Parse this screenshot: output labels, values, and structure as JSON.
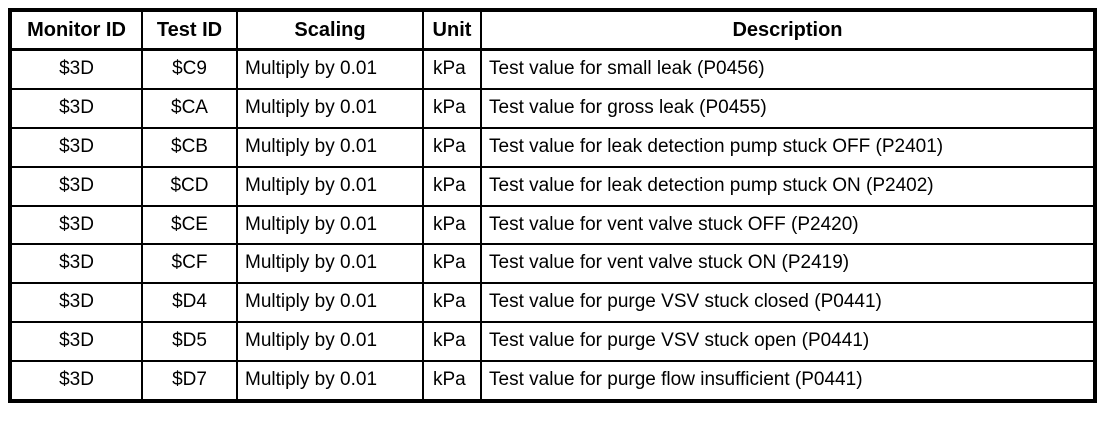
{
  "colors": {
    "border": "#000000",
    "background": "#ffffff",
    "text": "#000000"
  },
  "table": {
    "columns": [
      {
        "key": "monitor_id",
        "label": "Monitor ID"
      },
      {
        "key": "test_id",
        "label": "Test ID"
      },
      {
        "key": "scaling",
        "label": "Scaling"
      },
      {
        "key": "unit",
        "label": "Unit"
      },
      {
        "key": "description",
        "label": "Description"
      }
    ],
    "rows": [
      {
        "monitor_id": "$3D",
        "test_id": "$C9",
        "scaling": "Multiply by 0.01",
        "unit": "kPa",
        "description": "Test value for small leak (P0456)"
      },
      {
        "monitor_id": "$3D",
        "test_id": "$CA",
        "scaling": "Multiply by 0.01",
        "unit": "kPa",
        "description": "Test value for gross leak (P0455)"
      },
      {
        "monitor_id": "$3D",
        "test_id": "$CB",
        "scaling": "Multiply by 0.01",
        "unit": "kPa",
        "description": "Test value for leak detection pump stuck OFF (P2401)"
      },
      {
        "monitor_id": "$3D",
        "test_id": "$CD",
        "scaling": "Multiply by 0.01",
        "unit": "kPa",
        "description": "Test value for leak detection pump stuck ON (P2402)"
      },
      {
        "monitor_id": "$3D",
        "test_id": "$CE",
        "scaling": "Multiply by 0.01",
        "unit": "kPa",
        "description": "Test value for vent valve stuck OFF (P2420)"
      },
      {
        "monitor_id": "$3D",
        "test_id": "$CF",
        "scaling": "Multiply by 0.01",
        "unit": "kPa",
        "description": "Test value for vent valve stuck ON (P2419)"
      },
      {
        "monitor_id": "$3D",
        "test_id": "$D4",
        "scaling": "Multiply by 0.01",
        "unit": "kPa",
        "description": "Test value for purge VSV stuck closed (P0441)"
      },
      {
        "monitor_id": "$3D",
        "test_id": "$D5",
        "scaling": "Multiply by 0.01",
        "unit": "kPa",
        "description": "Test value for purge VSV stuck open (P0441)"
      },
      {
        "monitor_id": "$3D",
        "test_id": "$D7",
        "scaling": "Multiply by 0.01",
        "unit": "kPa",
        "description": "Test value for purge flow insufficient (P0441)"
      }
    ]
  }
}
